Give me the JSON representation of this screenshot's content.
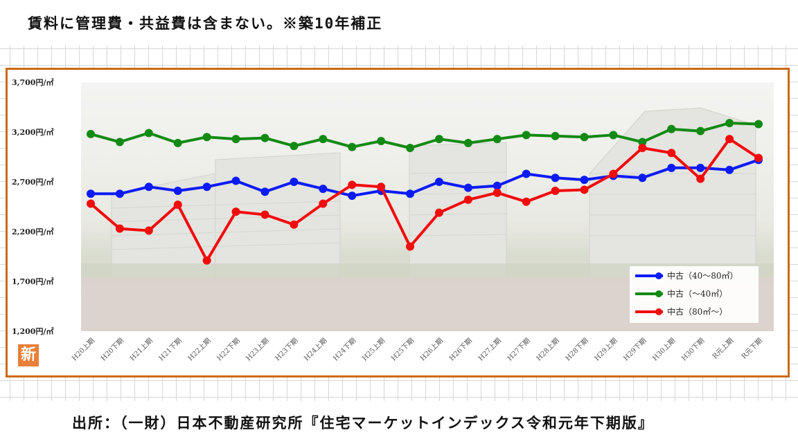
{
  "header": {
    "note": "賃料に管理費・共益費は含まない。※築10年補正"
  },
  "footer": {
    "source": "出所：（一財）日本不動産研究所『住宅マーケットインデックス令和元年下期版』"
  },
  "badge": {
    "label": "新"
  },
  "colors": {
    "frame": "#cc6a12",
    "blue": "#0b1bf5",
    "green": "#138a13",
    "red": "#f10c0c"
  },
  "chart_data": {
    "type": "line",
    "title": "",
    "xlabel": "",
    "ylabel": "",
    "ylim": [
      1200,
      3700
    ],
    "yticks": [
      1200,
      1700,
      2200,
      2700,
      3200,
      3700
    ],
    "ytick_labels": [
      "1,200円/㎡",
      "1,700円/㎡",
      "2,200円/㎡",
      "2,700円/㎡",
      "3,200円/㎡",
      "3,700円/㎡"
    ],
    "categories": [
      "H20上期",
      "H20下期",
      "H21上期",
      "H21下期",
      "H22上期",
      "H22下期",
      "H23上期",
      "H23下期",
      "H24上期",
      "H24下期",
      "H25上期",
      "H25下期",
      "H26上期",
      "H26下期",
      "H27上期",
      "H27下期",
      "H28上期",
      "H28下期",
      "H29上期",
      "H29下期",
      "H30上期",
      "H30下期",
      "R元上期",
      "R元下期"
    ],
    "legend_position": "bottom-right",
    "series": [
      {
        "name": "中古（40〜80㎡）",
        "color": "#0b1bf5",
        "values": [
          2580,
          2580,
          2650,
          2610,
          2650,
          2710,
          2600,
          2700,
          2630,
          2560,
          2610,
          2580,
          2700,
          2640,
          2660,
          2780,
          2740,
          2720,
          2760,
          2740,
          2840,
          2840,
          2820,
          2920
        ]
      },
      {
        "name": "中古（〜40㎡）",
        "color": "#138a13",
        "values": [
          3180,
          3100,
          3190,
          3090,
          3150,
          3130,
          3140,
          3060,
          3130,
          3050,
          3110,
          3040,
          3130,
          3090,
          3130,
          3170,
          3160,
          3150,
          3170,
          3100,
          3230,
          3210,
          3290,
          3280
        ]
      },
      {
        "name": "中古（80㎡〜）",
        "color": "#f10c0c",
        "values": [
          2480,
          2230,
          2210,
          2470,
          1910,
          2400,
          2370,
          2270,
          2480,
          2670,
          2650,
          2050,
          2390,
          2520,
          2590,
          2500,
          2610,
          2620,
          2780,
          3040,
          2990,
          2730,
          3130,
          2940
        ]
      }
    ]
  }
}
